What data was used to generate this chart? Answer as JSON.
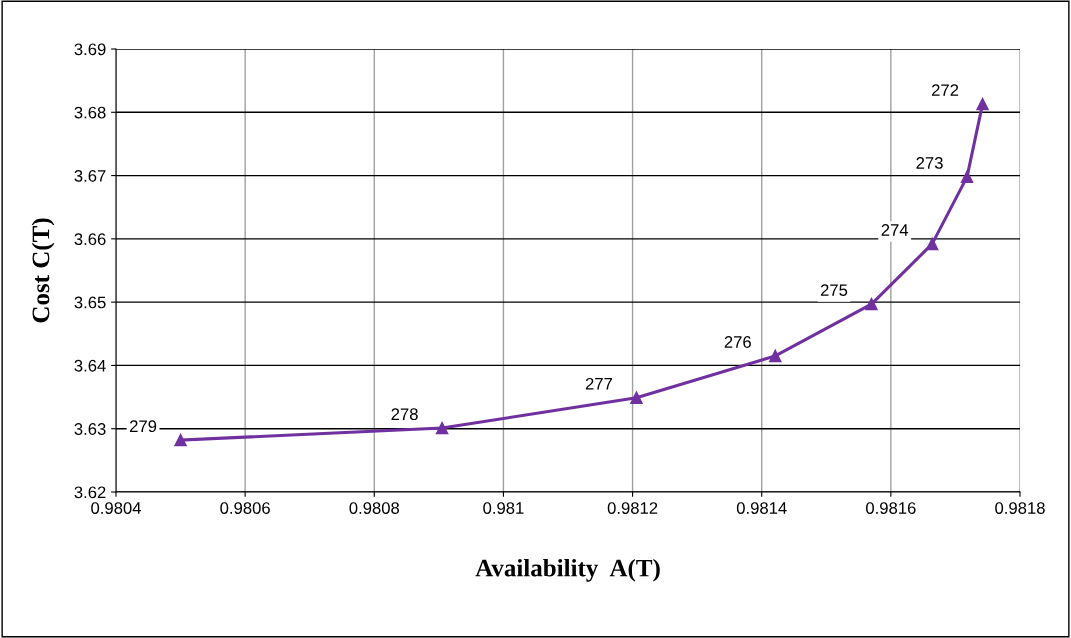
{
  "chart_data": {
    "type": "line",
    "xlabel": "Availability  A(T)",
    "ylabel": "Cost C(T)",
    "x": [
      0.9805,
      0.980905,
      0.981206,
      0.981421,
      0.98157,
      0.981664,
      0.981718,
      0.981742
    ],
    "series": [
      {
        "color": "#7030a0",
        "values": [
          3.6282,
          3.6301,
          3.6349,
          3.6415,
          3.6497,
          3.6592,
          3.6698,
          3.6813
        ]
      }
    ],
    "xlim": [
      0.9804,
      0.9818
    ],
    "xticks": [
      0.9804,
      0.9806,
      0.9808,
      0.981,
      0.9812,
      0.9814,
      0.9816,
      0.9818
    ],
    "ylim": [
      3.62,
      3.69
    ],
    "yticks": [
      3.62,
      3.63,
      3.64,
      3.65,
      3.66,
      3.67,
      3.68,
      3.69
    ],
    "grid": true,
    "marker": "triangle",
    "line_style": "solid",
    "legend": false,
    "annotations": [
      {
        "text": "279",
        "x": 0.9805,
        "y": 3.6282
      },
      {
        "text": "278",
        "x": 0.980905,
        "y": 3.6301
      },
      {
        "text": "277",
        "x": 0.981206,
        "y": 3.6349
      },
      {
        "text": "276",
        "x": 0.981421,
        "y": 3.6415
      },
      {
        "text": "275",
        "x": 0.98157,
        "y": 3.6497
      },
      {
        "text": "274",
        "x": 0.981664,
        "y": 3.6592
      },
      {
        "text": "273",
        "x": 0.981718,
        "y": 3.6698
      },
      {
        "text": "272",
        "x": 0.981742,
        "y": 3.6813
      }
    ]
  }
}
